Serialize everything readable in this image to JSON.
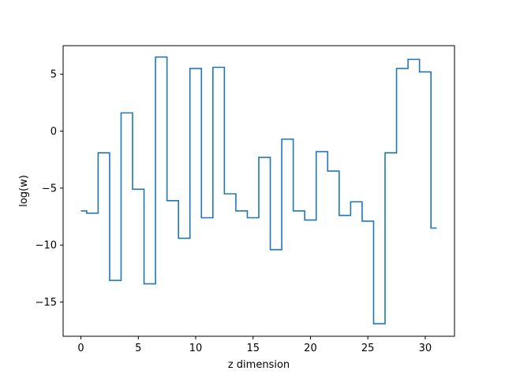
{
  "chart_data": {
    "type": "line",
    "drawstyle": "steps-mid",
    "title": "",
    "xlabel": "z dimension",
    "ylabel": "log(w)",
    "xlim": [
      -1.55,
      32.55
    ],
    "ylim": [
      -18.0,
      7.5
    ],
    "x_ticks": [
      0,
      5,
      10,
      15,
      20,
      25,
      30
    ],
    "y_ticks": [
      -15,
      -10,
      -5,
      0,
      5
    ],
    "x_tick_labels": [
      "0",
      "5",
      "10",
      "15",
      "20",
      "25",
      "30"
    ],
    "y_tick_labels": [
      "−15",
      "−10",
      "−5",
      "0",
      "5"
    ],
    "grid": false,
    "series": [
      {
        "color": "#1f77b4",
        "x": [
          0,
          1,
          2,
          3,
          4,
          5,
          6,
          7,
          8,
          9,
          10,
          11,
          12,
          13,
          14,
          15,
          16,
          17,
          18,
          19,
          20,
          21,
          22,
          23,
          24,
          25,
          26,
          27,
          28,
          29,
          30,
          31
        ],
        "y": [
          -7.0,
          -7.2,
          -1.9,
          -13.1,
          1.6,
          -5.1,
          -13.4,
          6.5,
          -6.1,
          -9.4,
          5.5,
          -7.6,
          5.6,
          -5.5,
          -7.0,
          -7.6,
          -2.3,
          -10.4,
          -0.7,
          -7.0,
          -7.8,
          -1.8,
          -3.5,
          -7.4,
          -6.2,
          -7.9,
          -16.9,
          -1.9,
          5.5,
          6.3,
          5.2,
          -8.5
        ]
      }
    ]
  }
}
